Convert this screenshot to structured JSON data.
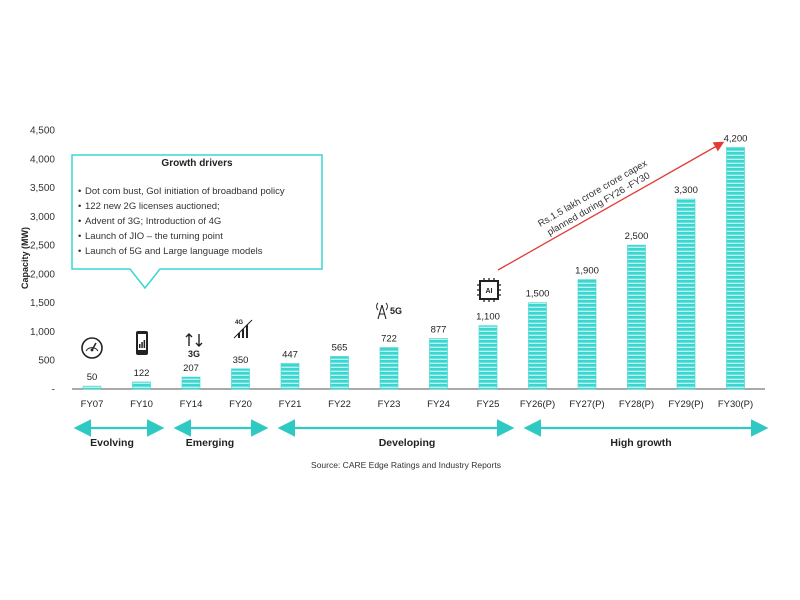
{
  "colors": {
    "bar": "#3cd6d0",
    "bar_stripe": "#b9f1ee",
    "accent": "#2fc9c3",
    "arrow_red": "#e53935",
    "text": "#222222"
  },
  "chart_data": {
    "type": "bar",
    "ylabel": "Capacity (MW)",
    "ylim": [
      0,
      4500
    ],
    "yticks": [
      "-",
      "500",
      "1,000",
      "1,500",
      "2,000",
      "2,500",
      "3,000",
      "3,500",
      "4,000",
      "4,500"
    ],
    "grid": false,
    "categories": [
      "FY07",
      "FY10",
      "FY14",
      "FY20",
      "FY21",
      "FY22",
      "FY23",
      "FY24",
      "FY25",
      "FY26(P)",
      "FY27(P)",
      "FY28(P)",
      "FY29(P)",
      "FY30(P)"
    ],
    "values": [
      50,
      122,
      207,
      350,
      447,
      565,
      722,
      877,
      1100,
      1500,
      1900,
      2500,
      3300,
      4200
    ],
    "data_labels": [
      "50",
      "122",
      "207",
      "350",
      "447",
      "565",
      "722",
      "877",
      "1,100",
      "1,500",
      "1,900",
      "2,500",
      "3,300",
      "4,200"
    ]
  },
  "callout": {
    "title": "Growth drivers",
    "items": [
      "Dot com bust,    GoI  initiation of broadband policy",
      "122 new 2G licenses auctioned;",
      "Advent of 3G; Introduction of 4G",
      "Launch of JIO    – the turning point",
      "Launch of 5G and     Large language models"
    ]
  },
  "phases": [
    {
      "label": "Evolving"
    },
    {
      "label": "Emerging"
    },
    {
      "label": "Developing"
    },
    {
      "label": "High growth"
    }
  ],
  "capex_note": {
    "line1": "Rs.1.5 lakh crore crore capex",
    "line2": "planned during FY26    -FY30"
  },
  "icons": [
    {
      "name": "speedometer-icon"
    },
    {
      "name": "smartphone-icon"
    },
    {
      "name": "3g-signal-icon",
      "text": "3G"
    },
    {
      "name": "4g-signal-icon",
      "text": "4G"
    },
    {
      "name": "5g-tower-icon",
      "text": "5G"
    },
    {
      "name": "ai-chip-icon",
      "text": "AI"
    }
  ],
  "source": "Source: CARE Edge Ratings and Industry Reports"
}
